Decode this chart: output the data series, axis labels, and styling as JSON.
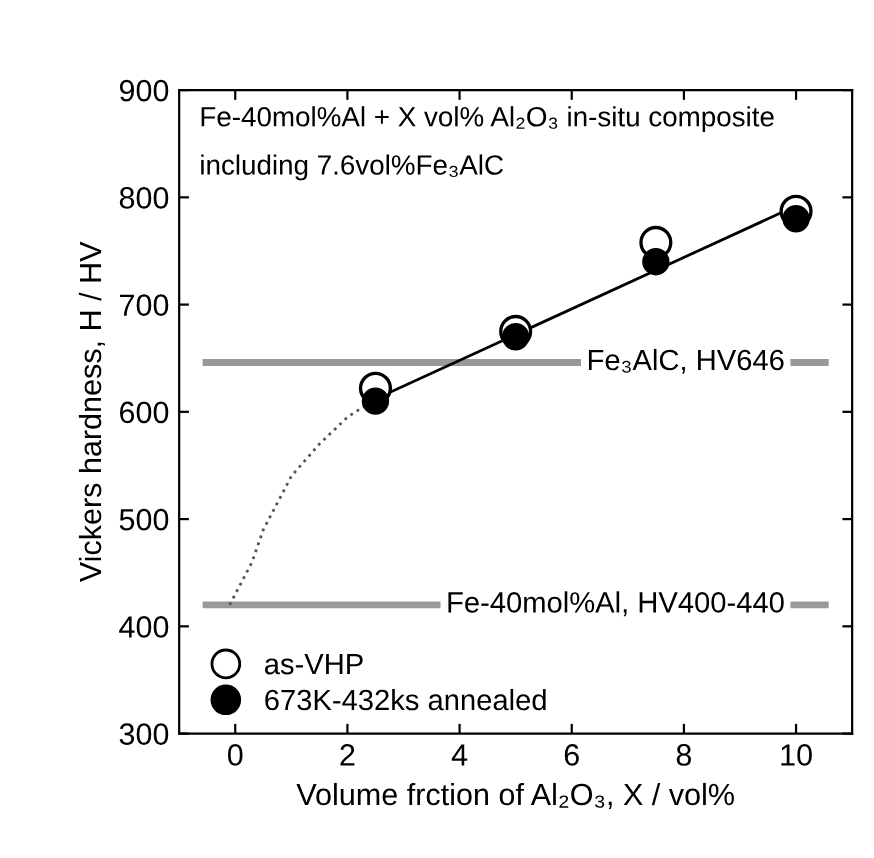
{
  "chart_data": {
    "type": "scatter",
    "xlabel": "Volume frction of Al₂O₃, X / vol%",
    "ylabel": "Vickers hardness, H / HV",
    "annotations": [
      "Fe-40mol%Al + X vol% Al₂O₃ in-situ composite",
      "including 7.6vol%Fe₃AlC"
    ],
    "xlim": [
      -1,
      11
    ],
    "ylim": [
      300,
      900
    ],
    "xticks": [
      0,
      2,
      4,
      6,
      8,
      10
    ],
    "yticks": [
      300,
      400,
      500,
      600,
      700,
      800,
      900
    ],
    "grid": false,
    "legend": "bottom left",
    "marker": "circle",
    "series": [
      {
        "name": "as-VHP",
        "color": "#ffffff",
        "x": [
          2.5,
          5,
          7.5,
          10
        ],
        "values": [
          622,
          675,
          758,
          787
        ]
      },
      {
        "name": "673K-432ks annealed",
        "color": "#000000",
        "x": [
          2.5,
          5,
          7.5,
          10
        ],
        "values": [
          610,
          670,
          740,
          780
        ]
      },
      {
        "type": "line",
        "color": "#000000",
        "line_style": "solid",
        "marker": "none",
        "x": [
          2.5,
          10
        ],
        "values": [
          612,
          792
        ]
      },
      {
        "type": "line",
        "color": "#555555",
        "line_style": "dotted",
        "marker": "none",
        "x": [
          -0.1,
          0.3,
          0.5,
          1,
          1.5,
          2,
          2.5
        ],
        "values": [
          420,
          460,
          490,
          540,
          570,
          595,
          612
        ]
      }
    ],
    "ref_lines": [
      {
        "axis": "y",
        "value": 646,
        "label": "Fe₃AlC, HV646",
        "color": "#999999"
      },
      {
        "axis": "y",
        "value": 420,
        "label": "Fe-40mol%Al, HV400-440",
        "color": "#999999"
      }
    ]
  }
}
